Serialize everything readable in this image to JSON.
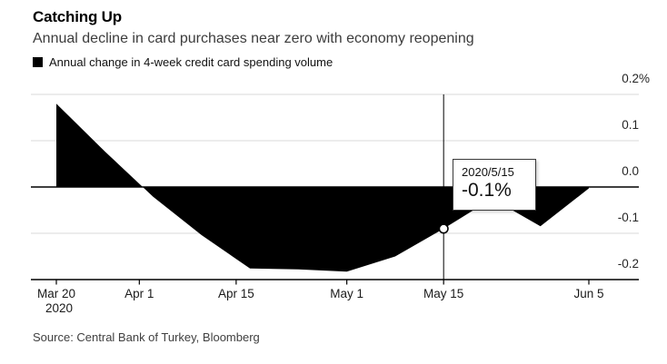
{
  "header": {
    "title": "Catching Up",
    "subtitle": "Annual decline in card purchases near zero with economy reopening"
  },
  "legend": {
    "label": "Annual change in 4-week credit card spending volume",
    "swatch_color": "#000000"
  },
  "tooltip": {
    "date": "2020/5/15",
    "value": "-0.1%"
  },
  "source": {
    "text": "Source: Central Bank of Turkey, Bloomberg"
  },
  "chart_data": {
    "type": "area",
    "title": "Catching Up",
    "subtitle": "Annual decline in card purchases near zero with economy reopening",
    "xlabel": "",
    "ylabel": "Annual change in 4-week credit card spending volume (%)",
    "ylim": [
      -0.2,
      0.2
    ],
    "baseline": 0,
    "grid": "horizontal",
    "legend_position": "top-left",
    "axis_side": "right",
    "colors": {
      "series": "#000000",
      "gridline": "#d8d8d8",
      "axis": "#000000",
      "background": "#ffffff"
    },
    "series": [
      {
        "name": "Annual change in 4-week credit card spending volume",
        "color": "#000000",
        "points": [
          {
            "date": "2020-03-20",
            "value": 0.18
          },
          {
            "date": "2020-03-27",
            "value": 0.077
          },
          {
            "date": "2020-04-03",
            "value": -0.021
          },
          {
            "date": "2020-04-10",
            "value": -0.104
          },
          {
            "date": "2020-04-17",
            "value": -0.176
          },
          {
            "date": "2020-04-24",
            "value": -0.178
          },
          {
            "date": "2020-05-01",
            "value": -0.183
          },
          {
            "date": "2020-05-08",
            "value": -0.15
          },
          {
            "date": "2020-05-15",
            "value": -0.09
          },
          {
            "date": "2020-05-22",
            "value": -0.025
          },
          {
            "date": "2020-05-29",
            "value": -0.085
          },
          {
            "date": "2020-06-05",
            "value": -0.003
          }
        ]
      }
    ],
    "y_ticks": [
      {
        "label": "0.2%",
        "value": 0.2
      },
      {
        "label": "0.1",
        "value": 0.1
      },
      {
        "label": "0.0",
        "value": 0.0
      },
      {
        "label": "-0.1",
        "value": -0.1
      },
      {
        "label": "-0.2",
        "value": -0.2
      }
    ],
    "x_ticks": [
      {
        "label": "Mar 20",
        "label2": "2020",
        "date": "2020-03-20"
      },
      {
        "label": "Apr 1",
        "label2": "",
        "date": "2020-04-01"
      },
      {
        "label": "Apr 15",
        "label2": "",
        "date": "2020-04-15"
      },
      {
        "label": "May 1",
        "label2": "",
        "date": "2020-05-01"
      },
      {
        "label": "May 15",
        "label2": "",
        "date": "2020-05-15"
      },
      {
        "label": "Jun 5",
        "label2": "",
        "date": "2020-06-05"
      }
    ],
    "annotation": {
      "point_date": "2020-05-15",
      "point_value": -0.09,
      "date_label": "2020/5/15",
      "value_label": "-0.1%"
    }
  }
}
